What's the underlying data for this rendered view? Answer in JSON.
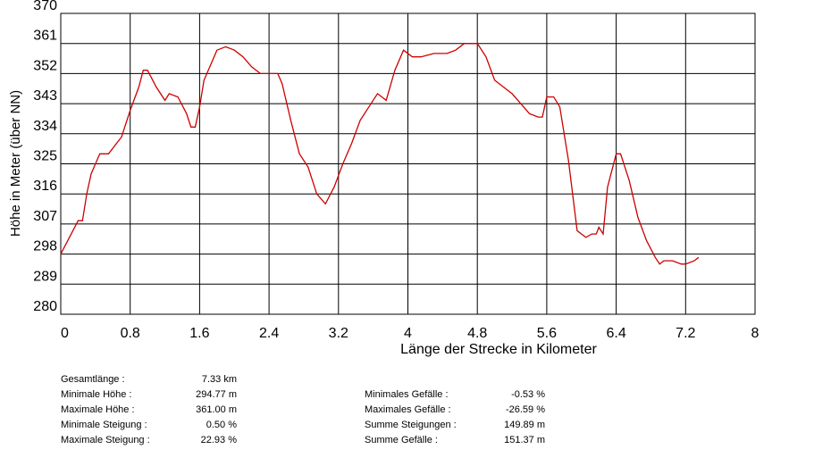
{
  "chart_data": {
    "type": "line",
    "xlabel": "Länge der Strecke in Kilometer",
    "ylabel": "Höhe in Meter (über NN)",
    "x": [
      0,
      0.1,
      0.2,
      0.25,
      0.3,
      0.35,
      0.45,
      0.55,
      0.7,
      0.8,
      0.9,
      0.95,
      1.0,
      1.1,
      1.2,
      1.25,
      1.35,
      1.45,
      1.5,
      1.55,
      1.6,
      1.65,
      1.75,
      1.8,
      1.9,
      2.0,
      2.1,
      2.2,
      2.3,
      2.4,
      2.5,
      2.55,
      2.65,
      2.75,
      2.85,
      2.95,
      3.05,
      3.15,
      3.25,
      3.35,
      3.45,
      3.55,
      3.65,
      3.75,
      3.85,
      3.95,
      4.05,
      4.15,
      4.3,
      4.45,
      4.55,
      4.65,
      4.8,
      4.9,
      5.0,
      5.1,
      5.2,
      5.3,
      5.4,
      5.5,
      5.55,
      5.6,
      5.68,
      5.75,
      5.85,
      5.95,
      6.05,
      6.12,
      6.17,
      6.2,
      6.25,
      6.3,
      6.4,
      6.45,
      6.55,
      6.65,
      6.75,
      6.85,
      6.9,
      6.95,
      7.05,
      7.15,
      7.2,
      7.3,
      7.35
    ],
    "series": [
      {
        "color": "#cc0000",
        "values": [
          298,
          303,
          308,
          308,
          316,
          322,
          328,
          328,
          333,
          341,
          348,
          353,
          353,
          348,
          344,
          346,
          345,
          340,
          336,
          336,
          342,
          350,
          356,
          359,
          360,
          359,
          357,
          354,
          352,
          352,
          352,
          349,
          338,
          328,
          324,
          316,
          313,
          318,
          325,
          331,
          338,
          342,
          346,
          344,
          353,
          359,
          357,
          357,
          358,
          358,
          359,
          361,
          361,
          357,
          350,
          348,
          346,
          343,
          340,
          339,
          339,
          345,
          345,
          342,
          326,
          305,
          303,
          304,
          304,
          306,
          304,
          318,
          328,
          328,
          320,
          309,
          302,
          297,
          295,
          296,
          296,
          295,
          295,
          296,
          297
        ]
      }
    ],
    "xlim": [
      0,
      8
    ],
    "xticks": [
      0,
      0.8,
      1.6,
      2.4,
      3.2,
      4,
      4.8,
      5.6,
      6.4,
      7.2,
      8
    ],
    "ylim": [
      280,
      370
    ],
    "yticks": [
      280,
      289,
      298,
      307,
      316,
      325,
      334,
      343,
      352,
      361,
      370
    ],
    "grid": true
  },
  "stats_left": [
    {
      "label": "Gesamtlänge :",
      "value": "7.33 km"
    },
    {
      "label": "Minimale Höhe :",
      "value": "294.77 m"
    },
    {
      "label": "Maximale Höhe :",
      "value": "361.00 m"
    },
    {
      "label": "Minimale Steigung :",
      "value": "0.50 %"
    },
    {
      "label": "Maximale Steigung :",
      "value": "22.93 %"
    }
  ],
  "stats_right": [
    {
      "label": "Minimales Gefälle :",
      "value": "-0.53 %"
    },
    {
      "label": "Maximales Gefälle :",
      "value": "-26.59 %"
    },
    {
      "label": "Summe Steigungen :",
      "value": "149.89 m"
    },
    {
      "label": "Summe Gefälle :",
      "value": "151.37 m"
    }
  ]
}
